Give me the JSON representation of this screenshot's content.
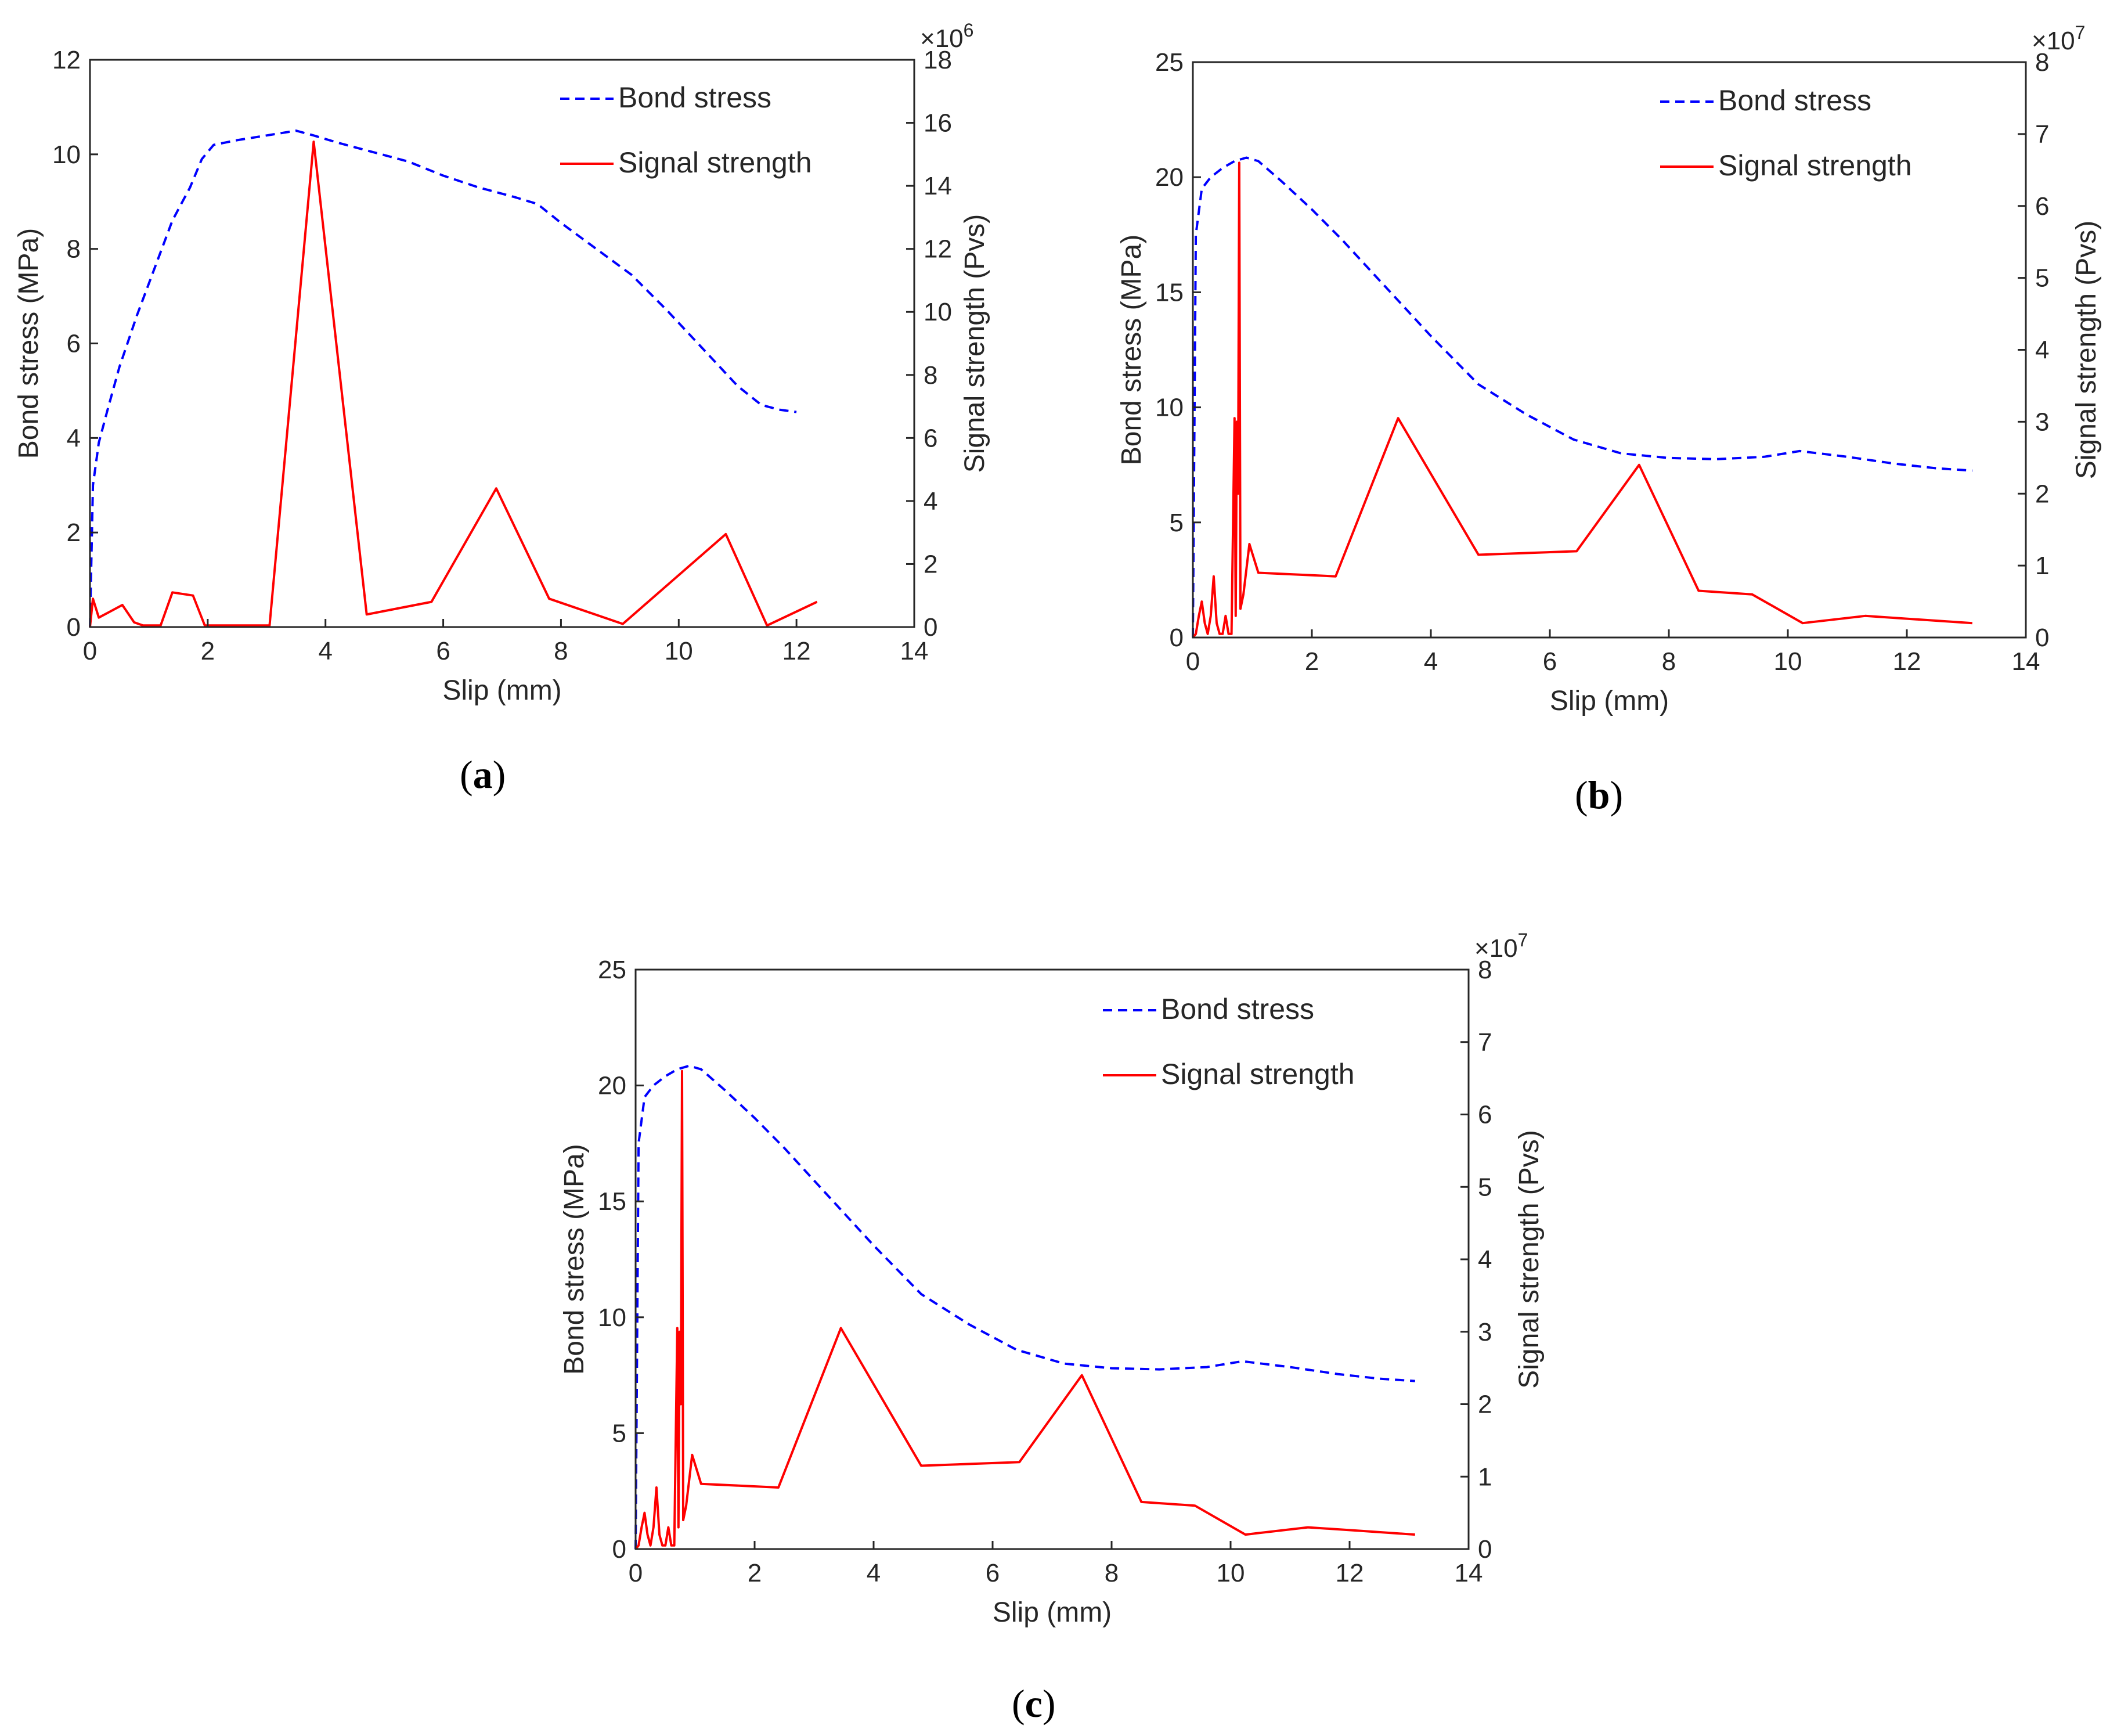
{
  "colors": {
    "bond": "#0000ff",
    "signal": "#ff0000",
    "axis": "#262626"
  },
  "chart_data": [
    {
      "type": "line",
      "panel_label": "a",
      "xlabel": "Slip (mm)",
      "ylabel": "Bond stress (MPa)",
      "y2label": "Signal strength (Pvs)",
      "y2_exponent": "6",
      "xlim": [
        0,
        14
      ],
      "ylim": [
        0,
        12
      ],
      "y2lim": [
        0,
        18
      ],
      "xticks": [
        0,
        2,
        4,
        6,
        8,
        10,
        12,
        14
      ],
      "yticks": [
        0,
        2,
        4,
        6,
        8,
        10,
        12
      ],
      "y2ticks": [
        0,
        2,
        4,
        6,
        8,
        10,
        12,
        14,
        16,
        18
      ],
      "legend": {
        "position": "top-right",
        "entries": [
          "Bond stress",
          "Signal strength"
        ]
      },
      "series": [
        {
          "name": "Bond stress",
          "axis": "left",
          "style": "dashed",
          "x": [
            0,
            0.05,
            0.15,
            0.3,
            0.5,
            0.8,
            1.1,
            1.4,
            1.7,
            1.9,
            2.1,
            2.5,
            3.0,
            3.5,
            3.8,
            4.2,
            4.8,
            5.4,
            6.0,
            6.6,
            7.2,
            7.6,
            8.0,
            8.6,
            9.2,
            9.8,
            10.4,
            11.0,
            11.4,
            11.7,
            12.0
          ],
          "y": [
            0,
            3.0,
            3.9,
            4.6,
            5.5,
            6.6,
            7.6,
            8.6,
            9.3,
            9.9,
            10.2,
            10.3,
            10.4,
            10.5,
            10.4,
            10.25,
            10.05,
            9.85,
            9.55,
            9.3,
            9.1,
            8.95,
            8.55,
            8.0,
            7.45,
            6.7,
            5.9,
            5.1,
            4.7,
            4.6,
            4.55
          ]
        },
        {
          "name": "Signal strength",
          "axis": "right",
          "style": "solid",
          "x": [
            0,
            0.05,
            0.15,
            0.3,
            0.55,
            0.75,
            0.9,
            1.2,
            1.4,
            1.75,
            1.95,
            2.5,
            3.05,
            3.8,
            4.7,
            5.8,
            6.9,
            7.8,
            9.05,
            10.8,
            11.5,
            12.35
          ],
          "y": [
            0,
            0.9,
            0.3,
            0.45,
            0.7,
            0.15,
            0.05,
            0.05,
            1.1,
            1.0,
            0.05,
            0.05,
            0.05,
            15.4,
            0.4,
            0.8,
            4.4,
            0.9,
            0.1,
            2.95,
            0.05,
            0.8
          ]
        }
      ]
    },
    {
      "type": "line",
      "panel_label": "b",
      "xlabel": "Slip (mm)",
      "ylabel": "Bond stress (MPa)",
      "y2label": "Signal strength (Pvs)",
      "y2_exponent": "7",
      "xlim": [
        0,
        14
      ],
      "ylim": [
        0,
        25
      ],
      "y2lim": [
        0,
        8
      ],
      "xticks": [
        0,
        2,
        4,
        6,
        8,
        10,
        12,
        14
      ],
      "yticks": [
        0,
        5,
        10,
        15,
        20,
        25
      ],
      "y2ticks": [
        0,
        1,
        2,
        3,
        4,
        5,
        6,
        7,
        8
      ],
      "legend": {
        "position": "top-right",
        "entries": [
          "Bond stress",
          "Signal strength"
        ]
      },
      "series": [
        {
          "name": "Bond stress",
          "axis": "left",
          "style": "dashed",
          "x": [
            0,
            0.05,
            0.15,
            0.3,
            0.5,
            0.7,
            0.9,
            1.1,
            1.5,
            2.0,
            2.5,
            3.0,
            3.5,
            4.0,
            4.8,
            5.6,
            6.4,
            7.2,
            8.0,
            8.8,
            9.6,
            10.2,
            11.0,
            11.8,
            12.5,
            13.1
          ],
          "y": [
            0,
            17.5,
            19.5,
            20.0,
            20.4,
            20.7,
            20.85,
            20.7,
            19.8,
            18.6,
            17.3,
            15.9,
            14.5,
            13.1,
            11.0,
            9.7,
            8.6,
            8.0,
            7.8,
            7.75,
            7.85,
            8.1,
            7.85,
            7.55,
            7.35,
            7.25
          ]
        },
        {
          "name": "Signal strength",
          "axis": "right",
          "style": "solid",
          "x": [
            0,
            0.05,
            0.1,
            0.15,
            0.2,
            0.25,
            0.3,
            0.35,
            0.4,
            0.45,
            0.5,
            0.55,
            0.6,
            0.65,
            0.7,
            0.72,
            0.74,
            0.76,
            0.78,
            0.8,
            0.85,
            0.95,
            1.1,
            2.4,
            3.45,
            4.8,
            6.45,
            7.5,
            8.5,
            9.4,
            10.25,
            11.3,
            12.2,
            13.1
          ],
          "y": [
            0,
            0.05,
            0.3,
            0.5,
            0.2,
            0.05,
            0.3,
            0.85,
            0.2,
            0.05,
            0.05,
            0.3,
            0.05,
            0.05,
            3.05,
            0.3,
            3.0,
            2.0,
            6.6,
            0.4,
            0.6,
            1.3,
            0.9,
            0.85,
            3.05,
            1.15,
            1.2,
            2.4,
            0.65,
            0.6,
            0.2,
            0.3,
            0.25,
            0.2
          ]
        }
      ]
    },
    {
      "type": "line",
      "panel_label": "c",
      "xlabel": "Slip (mm)",
      "ylabel": "Bond stress (MPa)",
      "y2label": "Signal strength (Pvs)",
      "y2_exponent": "7",
      "xlim": [
        0,
        14
      ],
      "ylim": [
        0,
        25
      ],
      "y2lim": [
        0,
        8
      ],
      "xticks": [
        0,
        2,
        4,
        6,
        8,
        10,
        12,
        14
      ],
      "yticks": [
        0,
        5,
        10,
        15,
        20,
        25
      ],
      "y2ticks": [
        0,
        1,
        2,
        3,
        4,
        5,
        6,
        7,
        8
      ],
      "legend": {
        "position": "top-right",
        "entries": [
          "Bond stress",
          "Signal strength"
        ]
      },
      "series": [
        {
          "name": "Bond stress",
          "axis": "left",
          "style": "dashed",
          "x": [
            0,
            0.05,
            0.15,
            0.3,
            0.5,
            0.7,
            0.9,
            1.1,
            1.5,
            2.0,
            2.5,
            3.0,
            3.5,
            4.0,
            4.8,
            5.6,
            6.4,
            7.2,
            8.0,
            8.8,
            9.6,
            10.2,
            11.0,
            11.8,
            12.5,
            13.1
          ],
          "y": [
            0,
            17.5,
            19.5,
            20.0,
            20.4,
            20.7,
            20.85,
            20.7,
            19.8,
            18.6,
            17.3,
            15.9,
            14.5,
            13.1,
            11.0,
            9.7,
            8.6,
            8.0,
            7.8,
            7.75,
            7.85,
            8.1,
            7.85,
            7.55,
            7.35,
            7.25
          ]
        },
        {
          "name": "Signal strength",
          "axis": "right",
          "style": "solid",
          "x": [
            0,
            0.05,
            0.1,
            0.15,
            0.2,
            0.25,
            0.3,
            0.35,
            0.4,
            0.45,
            0.5,
            0.55,
            0.6,
            0.65,
            0.7,
            0.72,
            0.74,
            0.76,
            0.78,
            0.8,
            0.85,
            0.95,
            1.1,
            2.4,
            3.45,
            4.8,
            6.45,
            7.5,
            8.5,
            9.4,
            10.25,
            11.3,
            12.2,
            13.1
          ],
          "y": [
            0,
            0.05,
            0.3,
            0.5,
            0.2,
            0.05,
            0.3,
            0.85,
            0.2,
            0.05,
            0.05,
            0.3,
            0.05,
            0.05,
            3.05,
            0.3,
            3.0,
            2.0,
            6.6,
            0.4,
            0.6,
            1.3,
            0.9,
            0.85,
            3.05,
            1.15,
            1.2,
            2.4,
            0.65,
            0.6,
            0.2,
            0.3,
            0.25,
            0.2
          ]
        }
      ]
    }
  ]
}
